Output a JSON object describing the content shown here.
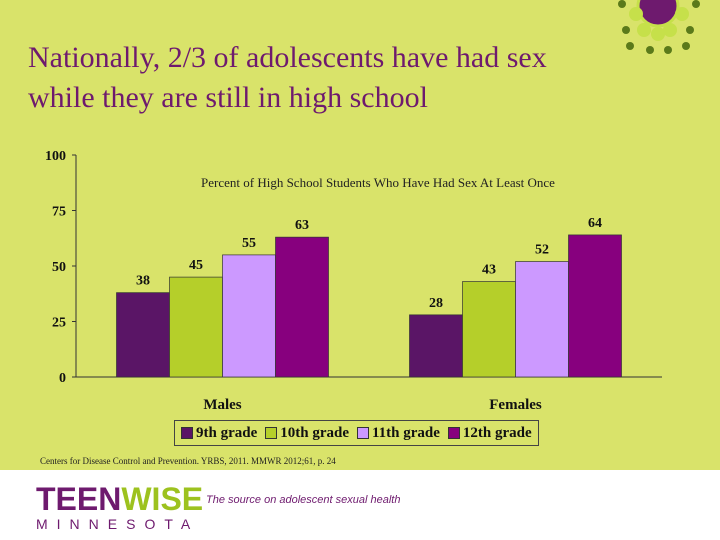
{
  "title": "Nationally, 2/3 of adolescents have had sex while they are still in high school",
  "source": "Centers for Disease Control and Prevention. YRBS, 2011. MMWR 2012;61, p. 24",
  "footer": {
    "logo_teen": "TEEN",
    "logo_wise": "WISE",
    "logo_sub": "MINNESOTA",
    "tagline": "The source on adolescent sexual health"
  },
  "colors": {
    "background": "#d9e36a",
    "accent_purple": "#6e1a6e",
    "accent_green": "#9dc21f"
  },
  "chart_data": {
    "type": "bar",
    "title": "Percent of High School Students Who Have Had Sex At Least Once",
    "categories": [
      "Males",
      "Females"
    ],
    "series": [
      {
        "name": "9th grade",
        "values": [
          38,
          28
        ],
        "color": "#5a1566"
      },
      {
        "name": "10th grade",
        "values": [
          45,
          43
        ],
        "color": "#b5cf2a"
      },
      {
        "name": "11th grade",
        "values": [
          55,
          52
        ],
        "color": "#cc99ff"
      },
      {
        "name": "12th grade",
        "values": [
          63,
          64
        ],
        "color": "#87007e"
      }
    ],
    "yticks": [
      0,
      25,
      50,
      75,
      100
    ],
    "ylim": [
      0,
      100
    ],
    "legend": "bottom",
    "grid": false
  }
}
